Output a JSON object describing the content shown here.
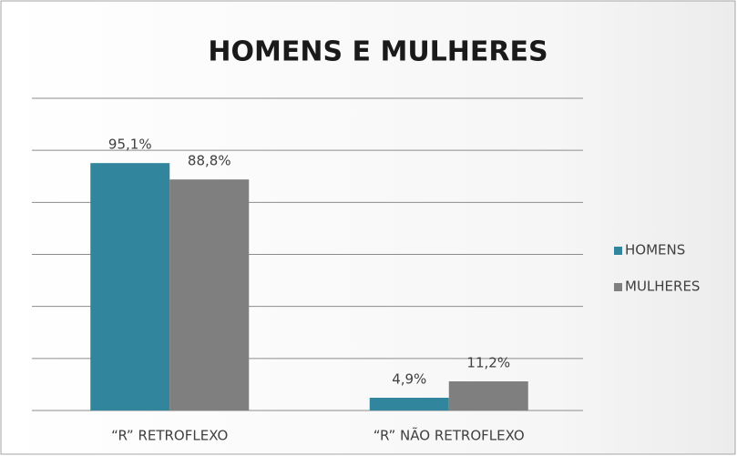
{
  "chart_data": {
    "type": "bar",
    "title": "HOMENS E MULHERES",
    "categories": [
      "“R” RETROFLEXO",
      "“R” NÃO RETROFLEXO"
    ],
    "series": [
      {
        "name": "HOMENS",
        "color": "#31859c",
        "values": [
          95.1,
          4.9
        ],
        "value_labels": [
          "95,1%",
          "4,9%"
        ]
      },
      {
        "name": "MULHERES",
        "color": "#7f7f7f",
        "values": [
          88.8,
          11.2
        ],
        "value_labels": [
          "88,8%",
          "11,2%"
        ]
      }
    ],
    "ylim": [
      0,
      120
    ],
    "yticks": [
      0,
      20,
      40,
      60,
      80,
      100,
      120
    ],
    "grid": true,
    "legend": "right"
  }
}
